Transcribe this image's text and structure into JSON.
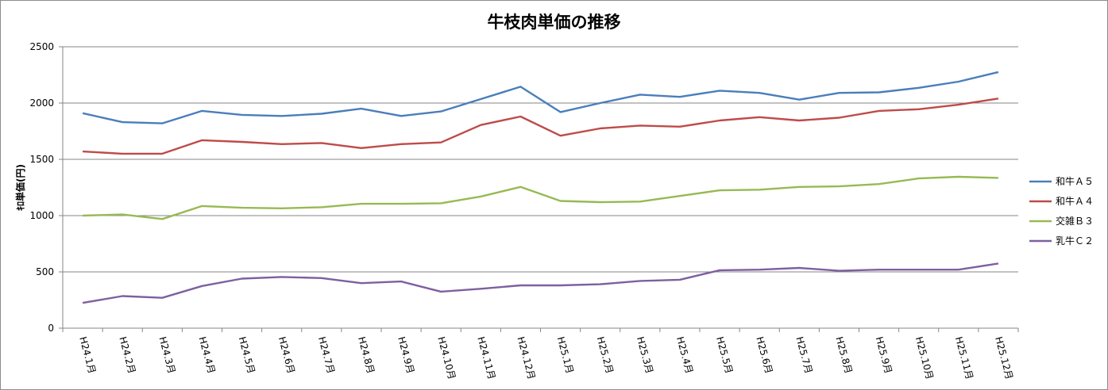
{
  "chart_data": {
    "type": "line",
    "title": "牛枝肉単価の推移",
    "ylabel": "ｷﾛ単価(円)",
    "xlabel": "",
    "ylim": [
      0,
      2500
    ],
    "yticks": [
      0,
      500,
      1000,
      1500,
      2000,
      2500
    ],
    "grid": true,
    "legend": "right",
    "x": [
      "H24.1月",
      "H24.2月",
      "H24.3月",
      "H24.4月",
      "H24.5月",
      "H24.6月",
      "H24.7月",
      "H24.8月",
      "H24.9月",
      "H24.10月",
      "H24.11月",
      "H24.12月",
      "H25.1月",
      "H25.2月",
      "H25.3月",
      "H25.4月",
      "H25.5月",
      "H25.6月",
      "H25.7月",
      "H25.8月",
      "H25.9月",
      "H25.10月",
      "H25.11月",
      "H25.12月"
    ],
    "series": [
      {
        "name": "和牛Ａ５",
        "color": "#4a7ebb",
        "values": [
          1910,
          1830,
          1820,
          1930,
          1895,
          1885,
          1905,
          1950,
          1885,
          1925,
          2035,
          2145,
          1920,
          2000,
          2075,
          2055,
          2110,
          2090,
          2030,
          2090,
          2095,
          2135,
          2190,
          2275
        ]
      },
      {
        "name": "和牛Ａ４",
        "color": "#be4b48",
        "values": [
          1570,
          1550,
          1550,
          1670,
          1655,
          1635,
          1645,
          1600,
          1635,
          1650,
          1805,
          1880,
          1710,
          1775,
          1800,
          1790,
          1845,
          1875,
          1845,
          1870,
          1930,
          1945,
          1985,
          2040
        ]
      },
      {
        "name": "交雑Ｂ３",
        "color": "#98b954",
        "values": [
          1000,
          1010,
          970,
          1085,
          1070,
          1065,
          1075,
          1105,
          1105,
          1110,
          1170,
          1255,
          1130,
          1120,
          1125,
          1175,
          1225,
          1230,
          1255,
          1260,
          1280,
          1330,
          1345,
          1335
        ]
      },
      {
        "name": "乳牛Ｃ２",
        "color": "#7d60a0",
        "values": [
          225,
          285,
          270,
          375,
          440,
          455,
          445,
          400,
          415,
          325,
          350,
          380,
          380,
          390,
          420,
          430,
          515,
          520,
          535,
          510,
          520,
          520,
          520,
          575
        ]
      }
    ]
  }
}
